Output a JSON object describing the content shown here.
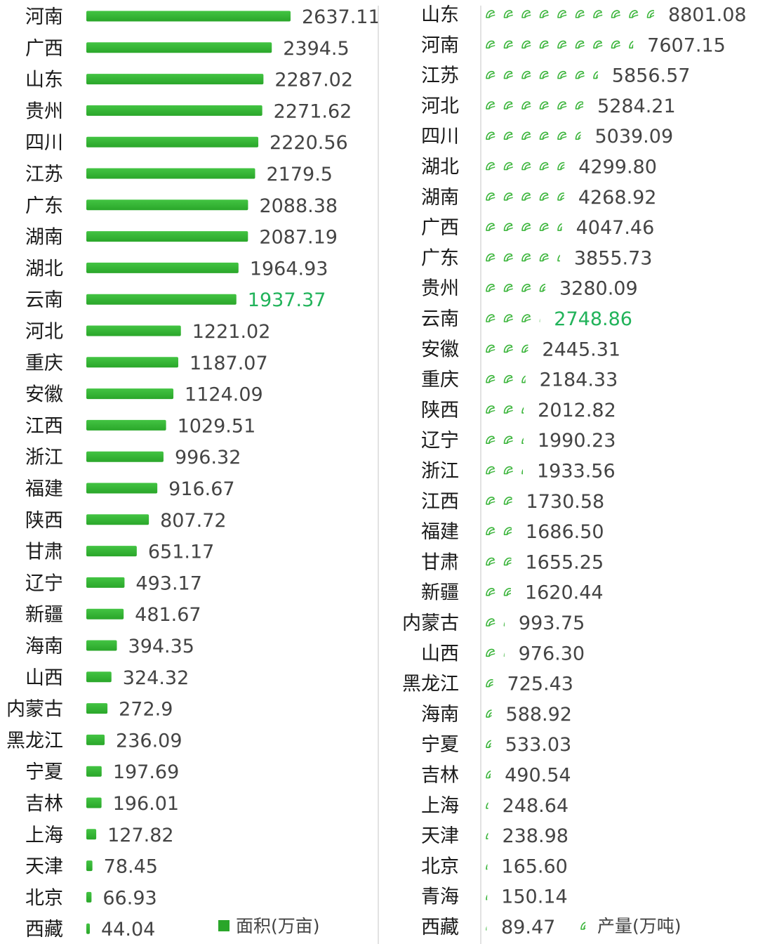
{
  "colors": {
    "bar": "#2aa62a",
    "bar_top": "#43c443",
    "highlight_text": "#21b35a",
    "text": "#1a1a1a",
    "value_text": "#444444",
    "axis": "#d8d8d8",
    "leaf_icon": "#3bb53b"
  },
  "chart_data": [
    {
      "type": "bar",
      "orientation": "horizontal",
      "legend": "面积(万亩)",
      "legend_position": "bottom-right",
      "highlight": "云南",
      "categories": [
        "河南",
        "广西",
        "山东",
        "贵州",
        "四川",
        "江苏",
        "广东",
        "湖南",
        "湖北",
        "云南",
        "河北",
        "重庆",
        "安徽",
        "江西",
        "浙江",
        "福建",
        "陕西",
        "甘肃",
        "辽宁",
        "新疆",
        "海南",
        "山西",
        "内蒙古",
        "黑龙江",
        "宁夏",
        "吉林",
        "上海",
        "天津",
        "北京",
        "西藏"
      ],
      "values": [
        2637.11,
        2394.5,
        2287.02,
        2271.62,
        2220.56,
        2179.5,
        2088.38,
        2087.19,
        1964.93,
        1937.37,
        1221.02,
        1187.07,
        1124.09,
        1029.51,
        996.32,
        916.67,
        807.72,
        651.17,
        493.17,
        481.67,
        394.35,
        324.32,
        272.9,
        236.09,
        197.69,
        196.01,
        127.82,
        78.45,
        66.93,
        44.04
      ],
      "value_labels": [
        "2637.11",
        "2394.5",
        "2287.02",
        "2271.62",
        "2220.56",
        "2179.5",
        "2088.38",
        "2087.19",
        "1964.93",
        "1937.37",
        "1221.02",
        "1187.07",
        "1124.09",
        "1029.51",
        "996.32",
        "916.67",
        "807.72",
        "651.17",
        "493.17",
        "481.67",
        "394.35",
        "324.32",
        "272.9",
        "236.09",
        "197.69",
        "196.01",
        "127.82",
        "78.45",
        "66.93",
        "44.04"
      ],
      "grid": false
    },
    {
      "type": "bar",
      "orientation": "horizontal",
      "style": "pictorial-leaf-icons",
      "legend": "产量(万吨)",
      "legend_position": "bottom-right",
      "highlight": "云南",
      "categories": [
        "山东",
        "河南",
        "江苏",
        "河北",
        "四川",
        "湖北",
        "湖南",
        "广西",
        "广东",
        "贵州",
        "云南",
        "安徽",
        "重庆",
        "陕西",
        "辽宁",
        "浙江",
        "江西",
        "福建",
        "甘肃",
        "新疆",
        "内蒙古",
        "山西",
        "黑龙江",
        "海南",
        "宁夏",
        "吉林",
        "上海",
        "天津",
        "北京",
        "青海",
        "西藏"
      ],
      "values": [
        8801.08,
        7607.15,
        5856.57,
        5284.21,
        5039.09,
        4299.8,
        4268.92,
        4047.46,
        3855.73,
        3280.09,
        2748.86,
        2445.31,
        2184.33,
        2012.82,
        1990.23,
        1933.56,
        1730.58,
        1686.5,
        1655.25,
        1620.44,
        993.75,
        976.3,
        725.43,
        588.92,
        533.03,
        490.54,
        248.64,
        238.98,
        165.6,
        150.14,
        89.47
      ],
      "value_labels": [
        "8801.08",
        "7607.15",
        "5856.57",
        "5284.21",
        "5039.09",
        "4299.80",
        "4268.92",
        "4047.46",
        "3855.73",
        "3280.09",
        "2748.86",
        "2445.31",
        "2184.33",
        "2012.82",
        "1990.23",
        "1933.56",
        "1730.58",
        "1686.50",
        "1655.25",
        "1620.44",
        "993.75",
        "976.30",
        "725.43",
        "588.92",
        "533.03",
        "490.54",
        "248.64",
        "238.98",
        "165.60",
        "150.14",
        "89.47"
      ],
      "grid": false
    }
  ]
}
